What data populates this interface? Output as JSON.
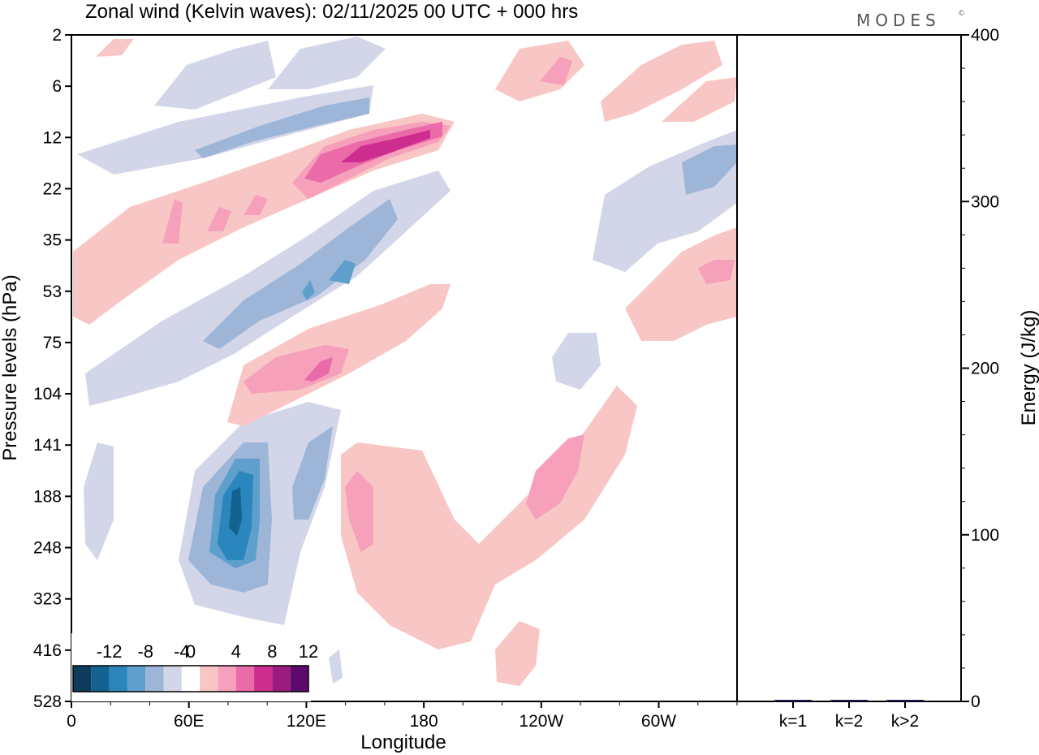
{
  "chart_data": {
    "type": "contour",
    "title": "Zonal wind (Kelvin waves):  02/11/2025  00 UTC  + 000 hrs",
    "brand": "MODES",
    "brand_mark": "©",
    "main_panel": {
      "xlabel": "Longitude",
      "ylabel": "Pressure levels (hPa)",
      "x_ticks": [
        "0",
        "60E",
        "120E",
        "180",
        "120W",
        "60W"
      ],
      "x_tick_degrees": [
        0,
        60,
        120,
        180,
        240,
        300
      ],
      "xlim_degrees": [
        0,
        340
      ],
      "y_levels_hPa": [
        "2",
        "6",
        "12",
        "22",
        "35",
        "53",
        "75",
        "104",
        "141",
        "188",
        "248",
        "323",
        "416",
        "528"
      ],
      "colorbar": {
        "labels": [
          "-12",
          "-8",
          "-4",
          "0",
          "4",
          "8",
          "12"
        ],
        "levels": [
          -14,
          -12,
          -10,
          -8,
          -6,
          -4,
          -2,
          2,
          4,
          6,
          8,
          10,
          12,
          14
        ],
        "colors": [
          "#0d3c5c",
          "#14628f",
          "#2b86bd",
          "#5e9fcc",
          "#9db6d8",
          "#d3d6e8",
          "#ffffff",
          "#f8c6c4",
          "#f6a0bb",
          "#ea6ba8",
          "#cd2d8f",
          "#9c1b7e",
          "#5c0a6e"
        ]
      },
      "features": [
        {
          "sign": "negative",
          "label": "-6",
          "cx_deg": 85,
          "cy_level": 9.7,
          "rx_deg": 25,
          "ry_levels": 1.8
        },
        {
          "sign": "negative",
          "label": "-12",
          "cx_deg": 84,
          "cy_level": 9.6,
          "rx_deg": 8,
          "ry_levels": 0.8
        },
        {
          "sign": "positive",
          "label": "10",
          "cx_deg": 155,
          "cy_level": 2.3,
          "rx_deg": 40,
          "ry_levels": 0.5
        },
        {
          "sign": "positive",
          "label": "6",
          "cx_deg": 135,
          "cy_level": 7.3,
          "rx_deg": 30,
          "ry_levels": 0.5
        },
        {
          "sign": "positive",
          "label": "6",
          "cx_deg": 245,
          "cy_level": 9.0,
          "rx_deg": 15,
          "ry_levels": 1.2
        }
      ]
    },
    "energy_panel": {
      "ylabel": "Energy (J/kg)",
      "ylim": [
        0,
        400
      ],
      "y_ticks": [
        "0",
        "100",
        "200",
        "300",
        "400"
      ],
      "categories": [
        "k=1",
        "k=2",
        "k>2"
      ],
      "values": [
        0.5,
        0.2,
        0.3
      ],
      "bar_color": "#1a1a4e"
    }
  }
}
